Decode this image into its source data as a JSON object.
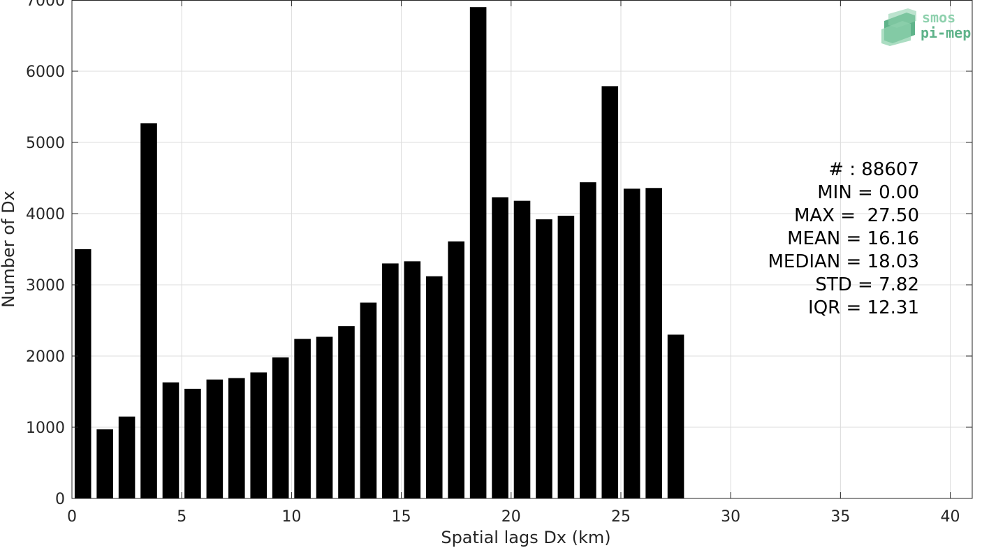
{
  "chart_data": {
    "type": "bar",
    "xlabel": "Spatial lags Dx (km)",
    "ylabel": "Number of Dx",
    "xlim": [
      0,
      41
    ],
    "ylim": [
      0,
      7000
    ],
    "xticks": [
      0,
      5,
      10,
      15,
      20,
      25,
      30,
      35,
      40
    ],
    "yticks": [
      0,
      1000,
      2000,
      3000,
      4000,
      5000,
      6000,
      7000
    ],
    "grid": true,
    "bar_color": "#000000",
    "x": [
      0.5,
      1.5,
      2.5,
      3.5,
      4.5,
      5.5,
      6.5,
      7.5,
      8.5,
      9.5,
      10.5,
      11.5,
      12.5,
      13.5,
      14.5,
      15.5,
      16.5,
      17.5,
      18.5,
      19.5,
      20.5,
      21.5,
      22.5,
      23.5,
      24.5,
      25.5,
      26.5,
      27.5
    ],
    "values": [
      3500,
      970,
      1150,
      5270,
      1630,
      1540,
      1670,
      1690,
      1770,
      1980,
      2240,
      2270,
      2420,
      2750,
      3300,
      3330,
      3120,
      3610,
      6900,
      4230,
      4180,
      3920,
      3970,
      4440,
      5790,
      4350,
      4360,
      2300
    ],
    "annotation": [
      "# : 88607",
      "MIN = 0.00",
      "MAX =  27.50",
      "MEAN = 16.16",
      "MEDIAN = 18.03",
      "STD = 7.82",
      "IQR = 12.31"
    ]
  },
  "logo": {
    "line1": "smos",
    "line2": "pi-mep",
    "color_light": "#8fd1ae",
    "color_dark": "#5fb38a"
  }
}
